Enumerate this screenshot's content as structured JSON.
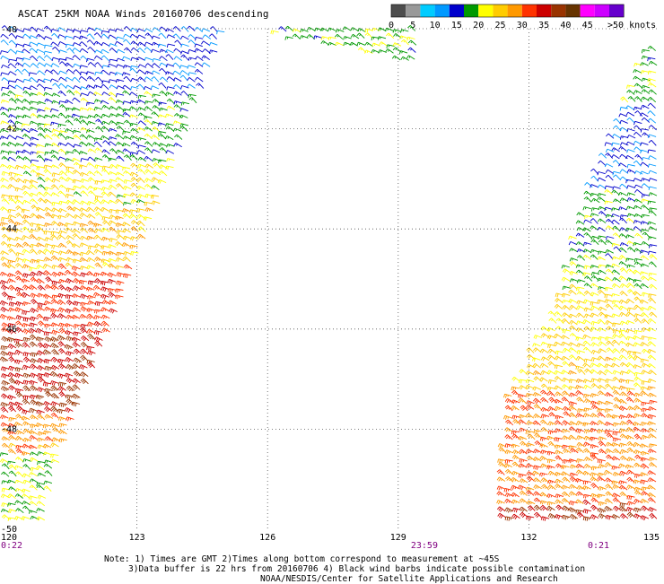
{
  "title": "ASCAT 25KM NOAA Winds 20160706 descending",
  "legend": {
    "labels": [
      "0",
      "5",
      "10",
      "15",
      "20",
      "25",
      "30",
      "35",
      "40",
      "45",
      ">50 knots"
    ],
    "colors": [
      "#4d4d4d",
      "#999999",
      "#00ccff",
      "#0099ff",
      "#0000cc",
      "#009900",
      "#ffff00",
      "#ffcc00",
      "#ff9900",
      "#ff3300",
      "#cc0000",
      "#993300",
      "#663300",
      "#ff00ff",
      "#cc00ff",
      "#6600cc"
    ]
  },
  "colors": {
    "grid": "#555555",
    "time_label": "#800080",
    "black": "#000000"
  },
  "chart_data": {
    "type": "scatter",
    "title": "ASCAT 25KM NOAA Winds 20160706 descending",
    "xlabel": "",
    "ylabel": "",
    "x_ticks": [
      "120",
      "123",
      "126",
      "129",
      "132",
      "135"
    ],
    "y_ticks": [
      "-40",
      "-42",
      "-44",
      "-46",
      "-48",
      "-50"
    ],
    "xlim": [
      120,
      135
    ],
    "ylim": [
      -50,
      -40
    ],
    "grid": true,
    "time_labels": [
      {
        "text": "0:22",
        "lon": 120.0
      },
      {
        "text": "23:59",
        "lon": 129.6
      },
      {
        "text": "0:21",
        "lon": 133.6
      }
    ],
    "swaths": [
      {
        "name": "west",
        "polygon": [
          [
            120,
            -40
          ],
          [
            125.1,
            -40
          ],
          [
            123.3,
            -44
          ],
          [
            121.3,
            -48.5
          ],
          [
            120.9,
            -49.9
          ],
          [
            120,
            -49.9
          ]
        ],
        "speed_bands": [
          {
            "lat_from": -40,
            "lat_to": -41.3,
            "speed_kt": 13
          },
          {
            "lat_from": -41.3,
            "lat_to": -42.7,
            "speed_kt": 17
          },
          {
            "lat_from": -42.7,
            "lat_to": -43.6,
            "speed_kt": 21
          },
          {
            "lat_from": -43.6,
            "lat_to": -44.8,
            "speed_kt": 24
          },
          {
            "lat_from": -44.8,
            "lat_to": -46.2,
            "speed_kt": 31
          },
          {
            "lat_from": -46.2,
            "lat_to": -47.7,
            "speed_kt": 34
          },
          {
            "lat_from": -47.7,
            "lat_to": -48.5,
            "speed_kt": 27
          },
          {
            "lat_from": -48.5,
            "lat_to": -50,
            "speed_kt": 19
          }
        ]
      },
      {
        "name": "top-middle",
        "polygon": [
          [
            126.2,
            -40
          ],
          [
            129.5,
            -40
          ],
          [
            129.45,
            -40.7
          ],
          [
            127.2,
            -40.3
          ],
          [
            126.2,
            -40.15
          ]
        ],
        "speed_bands": [
          {
            "lat_from": -40,
            "lat_to": -41,
            "speed_kt": 18
          }
        ]
      },
      {
        "name": "east",
        "polygon": [
          [
            134.7,
            -40.4
          ],
          [
            135,
            -40.4
          ],
          [
            135,
            -49.9
          ],
          [
            131.4,
            -49.9
          ],
          [
            131.5,
            -47.5
          ],
          [
            132.7,
            -45.5
          ],
          [
            133.3,
            -43.5
          ],
          [
            134.2,
            -41.6
          ]
        ],
        "speed_bands": [
          {
            "lat_from": -40,
            "lat_to": -41.5,
            "speed_kt": 18
          },
          {
            "lat_from": -41.5,
            "lat_to": -43.3,
            "speed_kt": 13
          },
          {
            "lat_from": -43.3,
            "lat_to": -44.6,
            "speed_kt": 17
          },
          {
            "lat_from": -44.6,
            "lat_to": -45.2,
            "speed_kt": 19
          },
          {
            "lat_from": -45.2,
            "lat_to": -46.5,
            "speed_kt": 22
          },
          {
            "lat_from": -46.5,
            "lat_to": -47.3,
            "speed_kt": 23
          },
          {
            "lat_from": -47.3,
            "lat_to": -49.5,
            "speed_kt": 28
          },
          {
            "lat_from": -49.5,
            "lat_to": -50,
            "speed_kt": 34
          }
        ]
      }
    ]
  },
  "notes": {
    "line1": "Note: 1) Times are GMT 2)Times along bottom correspond to measurement at ~45S",
    "line2": "3)Data buffer is 22 hrs from 20160706 4) Black wind barbs indicate possible contamination",
    "line3": "NOAA/NESDIS/Center for Satellite Applications and Research"
  }
}
